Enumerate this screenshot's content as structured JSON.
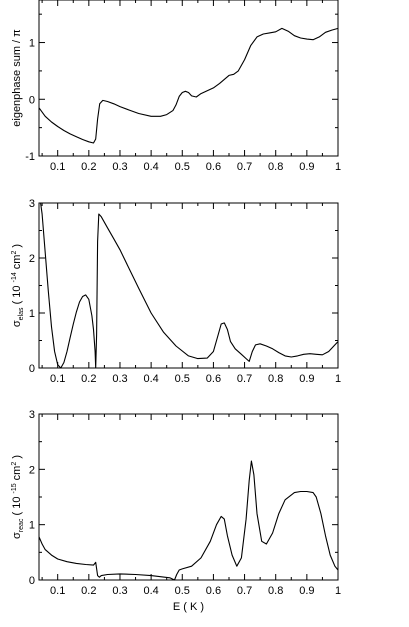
{
  "chart_data": [
    {
      "type": "line",
      "panel": "eigenphase",
      "ylabel": "eigenphase sum / π",
      "xlabel": "",
      "xlim": [
        0.04,
        1.0
      ],
      "ylim": [
        -1,
        1.75
      ],
      "x_ticks": [
        0.1,
        0.2,
        0.3,
        0.4,
        0.5,
        0.6,
        0.7,
        0.8,
        0.9,
        1
      ],
      "x_tick_labels": [
        "0.1",
        "0.2",
        "0.3",
        "0.4",
        "0.5",
        "0.6",
        "0.7",
        "0.8",
        "0.9",
        "1"
      ],
      "y_ticks": [
        -1,
        0,
        1
      ],
      "y_tick_labels": [
        "-1",
        "0",
        "1"
      ],
      "grid": false,
      "series": [
        {
          "x": [
            0.04,
            0.06,
            0.08,
            0.1,
            0.12,
            0.14,
            0.16,
            0.18,
            0.2,
            0.215,
            0.222,
            0.228,
            0.235,
            0.245,
            0.26,
            0.28,
            0.3,
            0.33,
            0.36,
            0.4,
            0.43,
            0.45,
            0.47,
            0.48,
            0.49,
            0.5,
            0.51,
            0.52,
            0.53,
            0.545,
            0.56,
            0.58,
            0.6,
            0.62,
            0.635,
            0.65,
            0.665,
            0.68,
            0.7,
            0.72,
            0.74,
            0.76,
            0.78,
            0.8,
            0.82,
            0.84,
            0.86,
            0.88,
            0.9,
            0.92,
            0.94,
            0.96,
            0.98,
            1.0
          ],
          "y": [
            -0.15,
            -0.3,
            -0.4,
            -0.48,
            -0.55,
            -0.61,
            -0.66,
            -0.71,
            -0.75,
            -0.77,
            -0.7,
            -0.35,
            -0.08,
            -0.02,
            -0.04,
            -0.08,
            -0.13,
            -0.19,
            -0.25,
            -0.3,
            -0.3,
            -0.27,
            -0.2,
            -0.1,
            0.05,
            0.12,
            0.14,
            0.12,
            0.06,
            0.04,
            0.1,
            0.15,
            0.2,
            0.28,
            0.35,
            0.42,
            0.44,
            0.5,
            0.7,
            0.95,
            1.1,
            1.15,
            1.17,
            1.19,
            1.25,
            1.2,
            1.12,
            1.08,
            1.06,
            1.05,
            1.1,
            1.18,
            1.22,
            1.25
          ]
        }
      ]
    },
    {
      "type": "line",
      "panel": "elastic",
      "ylabel": "σ elas ( 10 -14 cm 2 )",
      "ylabel_parts": {
        "sigma": "σ",
        "sub": "elas",
        "pre": "( 10",
        "exp": "-14",
        "unit": "cm",
        "unit_exp": "2",
        "post": ")"
      },
      "xlabel": "",
      "xlim": [
        0.04,
        1.0
      ],
      "ylim": [
        0,
        3
      ],
      "x_ticks": [
        0.1,
        0.2,
        0.3,
        0.4,
        0.5,
        0.6,
        0.7,
        0.8,
        0.9,
        1
      ],
      "x_tick_labels": [
        "0.1",
        "0.2",
        "0.3",
        "0.4",
        "0.5",
        "0.6",
        "0.7",
        "0.8",
        "0.9",
        "1"
      ],
      "y_ticks": [
        0,
        1,
        2,
        3
      ],
      "y_tick_labels": [
        "0",
        "1",
        "2",
        "3"
      ],
      "grid": false,
      "series": [
        {
          "x": [
            0.045,
            0.05,
            0.06,
            0.07,
            0.08,
            0.09,
            0.1,
            0.11,
            0.12,
            0.13,
            0.14,
            0.15,
            0.16,
            0.17,
            0.18,
            0.19,
            0.2,
            0.21,
            0.215,
            0.22,
            0.222,
            0.225,
            0.228,
            0.232,
            0.24,
            0.26,
            0.28,
            0.3,
            0.33,
            0.36,
            0.4,
            0.44,
            0.48,
            0.52,
            0.55,
            0.58,
            0.6,
            0.615,
            0.625,
            0.635,
            0.645,
            0.655,
            0.67,
            0.69,
            0.705,
            0.715,
            0.725,
            0.735,
            0.75,
            0.77,
            0.79,
            0.81,
            0.83,
            0.85,
            0.87,
            0.89,
            0.91,
            0.93,
            0.95,
            0.97,
            0.99,
            1.0
          ],
          "y": [
            3.0,
            2.8,
            2.1,
            1.4,
            0.75,
            0.3,
            0.06,
            0.0,
            0.1,
            0.3,
            0.55,
            0.8,
            1.02,
            1.2,
            1.3,
            1.33,
            1.25,
            0.95,
            0.7,
            0.3,
            0.0,
            0.6,
            2.3,
            2.8,
            2.75,
            2.55,
            2.35,
            2.15,
            1.8,
            1.45,
            1.0,
            0.65,
            0.4,
            0.22,
            0.17,
            0.18,
            0.3,
            0.6,
            0.8,
            0.82,
            0.7,
            0.48,
            0.35,
            0.25,
            0.17,
            0.12,
            0.3,
            0.42,
            0.44,
            0.4,
            0.35,
            0.28,
            0.22,
            0.2,
            0.22,
            0.25,
            0.26,
            0.25,
            0.24,
            0.3,
            0.42,
            0.48
          ]
        }
      ]
    },
    {
      "type": "line",
      "panel": "reactive",
      "ylabel": "σ reac ( 10 -15 cm 2 )",
      "ylabel_parts": {
        "sigma": "σ",
        "sub": "reac",
        "pre": "( 10",
        "exp": "-15",
        "unit": "cm",
        "unit_exp": "2",
        "post": ")"
      },
      "xlabel": "E ( K )",
      "xlim": [
        0.04,
        1.0
      ],
      "ylim": [
        0,
        3
      ],
      "x_ticks": [
        0.1,
        0.2,
        0.3,
        0.4,
        0.5,
        0.6,
        0.7,
        0.8,
        0.9,
        1
      ],
      "x_tick_labels": [
        "0.1",
        "0.2",
        "0.3",
        "0.4",
        "0.5",
        "0.6",
        "0.7",
        "0.8",
        "0.9",
        "1"
      ],
      "y_ticks": [
        0,
        1,
        2,
        3
      ],
      "y_tick_labels": [
        "0",
        "1",
        "2",
        "3"
      ],
      "grid": false,
      "series": [
        {
          "x": [
            0.04,
            0.05,
            0.06,
            0.08,
            0.1,
            0.13,
            0.16,
            0.19,
            0.215,
            0.222,
            0.228,
            0.234,
            0.24,
            0.26,
            0.3,
            0.35,
            0.4,
            0.43,
            0.46,
            0.475,
            0.482,
            0.49,
            0.5,
            0.53,
            0.56,
            0.59,
            0.61,
            0.625,
            0.635,
            0.645,
            0.66,
            0.675,
            0.69,
            0.705,
            0.715,
            0.722,
            0.73,
            0.74,
            0.755,
            0.77,
            0.79,
            0.81,
            0.83,
            0.86,
            0.88,
            0.9,
            0.92,
            0.93,
            0.945,
            0.96,
            0.975,
            0.99,
            1.0
          ],
          "y": [
            0.78,
            0.65,
            0.55,
            0.45,
            0.38,
            0.33,
            0.3,
            0.28,
            0.27,
            0.32,
            0.08,
            0.05,
            0.08,
            0.1,
            0.11,
            0.1,
            0.08,
            0.06,
            0.04,
            0.0,
            0.1,
            0.18,
            0.2,
            0.25,
            0.4,
            0.7,
            1.0,
            1.15,
            1.1,
            0.8,
            0.45,
            0.25,
            0.4,
            1.1,
            1.8,
            2.15,
            1.9,
            1.2,
            0.7,
            0.65,
            0.85,
            1.2,
            1.45,
            1.58,
            1.6,
            1.6,
            1.58,
            1.5,
            1.2,
            0.8,
            0.45,
            0.25,
            0.18
          ]
        }
      ]
    }
  ]
}
